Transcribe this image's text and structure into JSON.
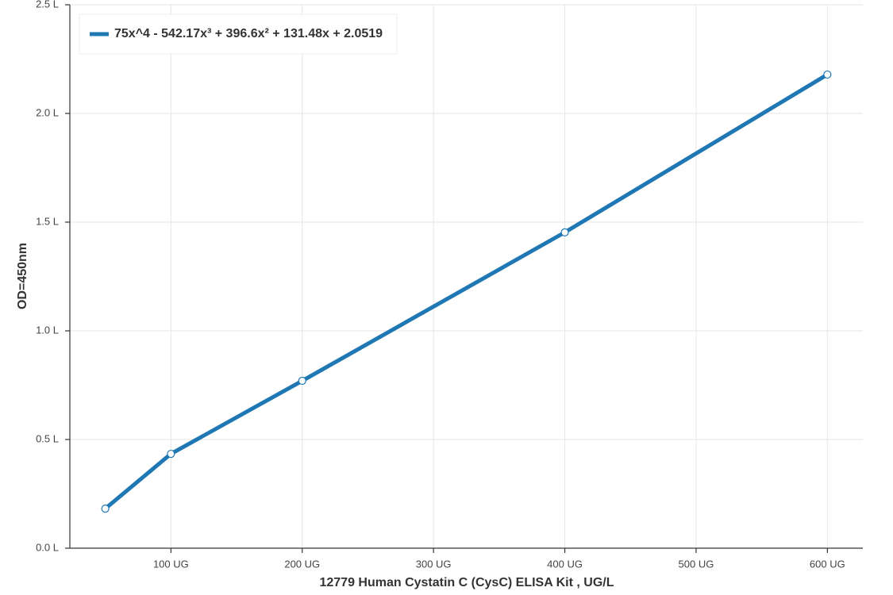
{
  "chart_data": {
    "type": "line",
    "x_label": "12779 Human Cystatin C (CysC) ELISA Kit , UG/L",
    "y_label": "OD=450nm",
    "x": [
      50,
      100,
      200,
      400,
      600
    ],
    "series": [
      {
        "name": "75x^4 - 542.17x³ + 396.6x² + 131.48x + 2.0519",
        "color": "#1f77b4",
        "values": [
          0.182,
          0.434,
          0.77,
          1.453,
          2.179
        ]
      }
    ],
    "xlim": [
      23,
      627
    ],
    "ylim": [
      0,
      2.5
    ],
    "xticks": [
      {
        "value": 100,
        "label": "100 UG"
      },
      {
        "value": 200,
        "label": "200 UG"
      },
      {
        "value": 300,
        "label": "300 UG"
      },
      {
        "value": 400,
        "label": "400 UG"
      },
      {
        "value": 500,
        "label": "500 UG"
      },
      {
        "value": 600,
        "label": "600 UG"
      }
    ],
    "yticks": [
      {
        "value": 0,
        "label": "0.0 L"
      },
      {
        "value": 0.5,
        "label": "0.5 L"
      },
      {
        "value": 1,
        "label": "1.0 L"
      },
      {
        "value": 1.5,
        "label": "1.5 L"
      },
      {
        "value": 2,
        "label": "2.0 L"
      },
      {
        "value": 2.5,
        "label": "2.5 L"
      }
    ],
    "grid": true,
    "legend": "upper-left"
  }
}
